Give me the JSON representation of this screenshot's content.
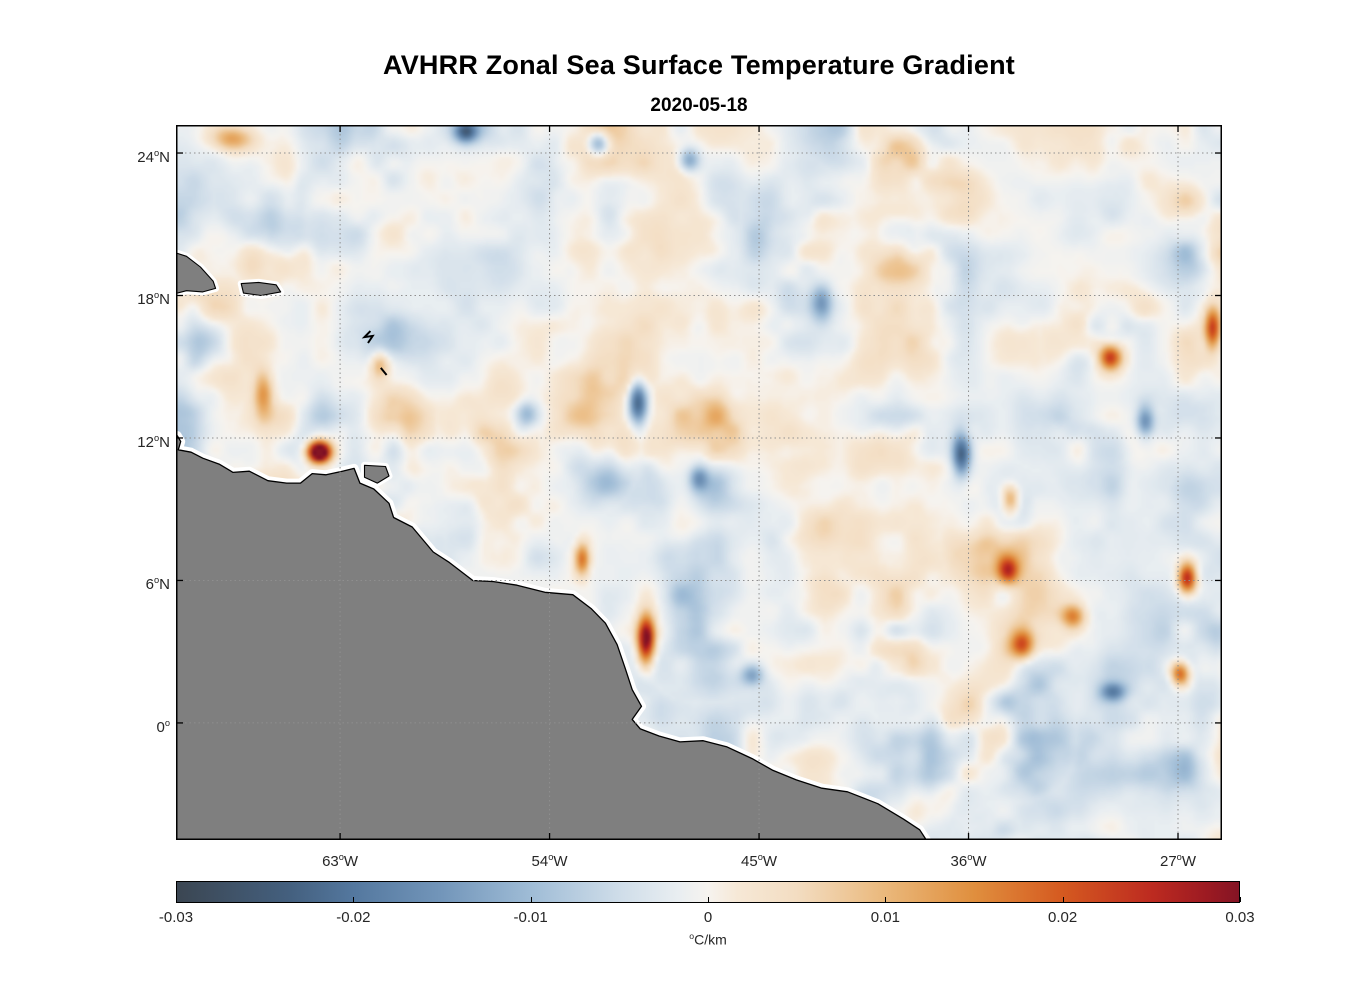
{
  "title": "AVHRR Zonal Sea Surface Temperature Gradient",
  "subtitle": "2020-05-18",
  "chart_data": {
    "type": "heatmap",
    "title": "AVHRR Zonal Sea Surface Temperature Gradient",
    "date": "2020-05-18",
    "x_axis": {
      "range": [
        -70.05,
        -25.11
      ],
      "ticks": [
        {
          "label": "63°W",
          "value": "63",
          "deg": "o",
          "suffix": "W",
          "lon": -63
        },
        {
          "label": "54°W",
          "value": "54",
          "deg": "o",
          "suffix": "W",
          "lon": -54
        },
        {
          "label": "45°W",
          "value": "45",
          "deg": "o",
          "suffix": "W",
          "lon": -45
        },
        {
          "label": "36°W",
          "value": "36",
          "deg": "o",
          "suffix": "W",
          "lon": -36
        },
        {
          "label": "27°W",
          "value": "27",
          "deg": "o",
          "suffix": "W",
          "lon": -27
        }
      ]
    },
    "y_axis": {
      "range": [
        -4.93,
        25.18
      ],
      "ticks": [
        {
          "label": "24°N",
          "value": "24",
          "deg": "o",
          "suffix": "N",
          "lat": 24
        },
        {
          "label": "18°N",
          "value": "18",
          "deg": "o",
          "suffix": "N",
          "lat": 18
        },
        {
          "label": "12°N",
          "value": "12",
          "deg": "o",
          "suffix": "N",
          "lat": 12
        },
        {
          "label": "6°N",
          "value": "6",
          "deg": "o",
          "suffix": "N",
          "lat": 6
        },
        {
          "label": "0°",
          "value": "0",
          "deg": "o",
          "suffix": "",
          "lat": 0
        }
      ]
    },
    "colorbar": {
      "range": [
        -0.03,
        0.03
      ],
      "unit": "°C/km",
      "unit_deg": "o",
      "unit_text": "C/km",
      "ticks": [
        "-0.03",
        "-0.02",
        "-0.01",
        "0",
        "0.01",
        "0.02",
        "0.03"
      ],
      "tick_values": [
        -0.03,
        -0.02,
        -0.01,
        0,
        0.01,
        0.02,
        0.03
      ],
      "colormap": [
        {
          "t": 0.0,
          "c": "#3b4652"
        },
        {
          "t": 0.107,
          "c": "#44607f"
        },
        {
          "t": 0.167,
          "c": "#54789f"
        },
        {
          "t": 0.25,
          "c": "#7396ba"
        },
        {
          "t": 0.333,
          "c": "#9fbcd6"
        },
        {
          "t": 0.417,
          "c": "#cfdde9"
        },
        {
          "t": 0.472,
          "c": "#e9eef1"
        },
        {
          "t": 0.5,
          "c": "#f6f3ef"
        },
        {
          "t": 0.528,
          "c": "#f6e8d6"
        },
        {
          "t": 0.583,
          "c": "#f3ddc2"
        },
        {
          "t": 0.667,
          "c": "#eab87b"
        },
        {
          "t": 0.75,
          "c": "#e08f3e"
        },
        {
          "t": 0.833,
          "c": "#d55a20"
        },
        {
          "t": 0.917,
          "c": "#bd2b20"
        },
        {
          "t": 0.97,
          "c": "#9c1a22"
        },
        {
          "t": 1.0,
          "c": "#841424"
        }
      ]
    },
    "land_color": "#7f7f7f",
    "coast_outline_color": "#000000",
    "coast_gap_color": "#ffffff",
    "grid_color": "#8f8f8f",
    "coastline": [
      [
        -70.4,
        12.15
      ],
      [
        -70.0,
        12.1
      ],
      [
        -69.85,
        11.85
      ],
      [
        -69.95,
        11.5
      ],
      [
        -69.4,
        11.4
      ],
      [
        -68.9,
        11.15
      ],
      [
        -68.2,
        10.9
      ],
      [
        -67.6,
        10.55
      ],
      [
        -66.9,
        10.6
      ],
      [
        -66.1,
        10.2
      ],
      [
        -65.3,
        10.1
      ],
      [
        -64.7,
        10.1
      ],
      [
        -64.2,
        10.5
      ],
      [
        -63.6,
        10.45
      ],
      [
        -62.9,
        10.6
      ],
      [
        -62.4,
        10.72
      ],
      [
        -62.15,
        10.1
      ],
      [
        -61.55,
        9.85
      ],
      [
        -60.9,
        9.25
      ],
      [
        -60.7,
        8.65
      ],
      [
        -59.9,
        8.25
      ],
      [
        -59.0,
        7.2
      ],
      [
        -58.3,
        6.75
      ],
      [
        -57.3,
        6.0
      ],
      [
        -56.4,
        5.95
      ],
      [
        -55.4,
        5.8
      ],
      [
        -54.2,
        5.5
      ],
      [
        -53.0,
        5.4
      ],
      [
        -52.2,
        4.8
      ],
      [
        -51.6,
        4.2
      ],
      [
        -51.1,
        3.3
      ],
      [
        -50.75,
        2.3
      ],
      [
        -50.45,
        1.4
      ],
      [
        -50.05,
        0.7
      ],
      [
        -50.45,
        0.15
      ],
      [
        -50.1,
        -0.25
      ],
      [
        -49.3,
        -0.55
      ],
      [
        -48.4,
        -0.8
      ],
      [
        -47.4,
        -0.75
      ],
      [
        -46.4,
        -1.0
      ],
      [
        -45.3,
        -1.5
      ],
      [
        -44.4,
        -2.0
      ],
      [
        -43.4,
        -2.4
      ],
      [
        -42.3,
        -2.75
      ],
      [
        -41.2,
        -2.9
      ],
      [
        -39.9,
        -3.4
      ],
      [
        -38.8,
        -4.05
      ],
      [
        -38.1,
        -4.5
      ],
      [
        -37.5,
        -5.4
      ]
    ],
    "coastline_close": [
      [
        -37.2,
        -6.5
      ],
      [
        -71.0,
        -6.5
      ]
    ],
    "islands": [
      [
        [
          -70.4,
          19.9
        ],
        [
          -69.6,
          19.65
        ],
        [
          -69.0,
          19.2
        ],
        [
          -68.45,
          18.6
        ],
        [
          -68.35,
          18.3
        ],
        [
          -68.9,
          18.15
        ],
        [
          -69.6,
          18.2
        ],
        [
          -70.4,
          18.0
        ]
      ],
      [
        [
          -67.25,
          18.5
        ],
        [
          -66.5,
          18.55
        ],
        [
          -65.75,
          18.45
        ],
        [
          -65.55,
          18.15
        ],
        [
          -66.4,
          18.0
        ],
        [
          -67.15,
          18.1
        ]
      ],
      [
        [
          -61.95,
          10.85
        ],
        [
          -61.05,
          10.8
        ],
        [
          -60.9,
          10.4
        ],
        [
          -61.4,
          10.1
        ],
        [
          -61.95,
          10.35
        ]
      ]
    ],
    "minor_islands": [
      [
        [
          -61.7,
          16.5
        ],
        [
          -61.95,
          16.25
        ],
        [
          -61.6,
          16.3
        ],
        [
          -61.8,
          16.0
        ]
      ],
      [
        [
          -61.25,
          14.95
        ],
        [
          -61.0,
          14.65
        ]
      ]
    ],
    "features": [
      {
        "lon": -63.9,
        "lat": 11.4,
        "amp": 0.042,
        "sx": 0.5,
        "sy": 0.45
      },
      {
        "lon": -66.3,
        "lat": 13.9,
        "amp": 0.013,
        "sx": 0.4,
        "sy": 1.0
      },
      {
        "lon": -67.6,
        "lat": 24.6,
        "amp": 0.012,
        "sx": 0.9,
        "sy": 0.5
      },
      {
        "lon": -57.6,
        "lat": 24.9,
        "amp": -0.02,
        "sx": 0.5,
        "sy": 0.45
      },
      {
        "lon": -51.9,
        "lat": 24.4,
        "amp": -0.016,
        "sx": 0.45,
        "sy": 0.5
      },
      {
        "lon": -50.2,
        "lat": 13.5,
        "amp": -0.024,
        "sx": 0.4,
        "sy": 0.9
      },
      {
        "lon": -49.85,
        "lat": 3.5,
        "amp": 0.034,
        "sx": 0.38,
        "sy": 1.0
      },
      {
        "lon": -52.6,
        "lat": 6.9,
        "amp": 0.018,
        "sx": 0.32,
        "sy": 0.7
      },
      {
        "lon": -36.3,
        "lat": 11.3,
        "amp": -0.022,
        "sx": 0.4,
        "sy": 0.9
      },
      {
        "lon": -29.9,
        "lat": 15.4,
        "amp": 0.026,
        "sx": 0.5,
        "sy": 0.55
      },
      {
        "lon": -25.5,
        "lat": 16.6,
        "amp": 0.024,
        "sx": 0.35,
        "sy": 0.9
      },
      {
        "lon": -26.6,
        "lat": 6.1,
        "amp": 0.028,
        "sx": 0.4,
        "sy": 0.65
      },
      {
        "lon": -34.3,
        "lat": 6.4,
        "amp": 0.02,
        "sx": 0.45,
        "sy": 0.55
      },
      {
        "lon": -33.7,
        "lat": 3.3,
        "amp": 0.018,
        "sx": 0.5,
        "sy": 0.6
      },
      {
        "lon": -26.9,
        "lat": 2.1,
        "amp": 0.022,
        "sx": 0.4,
        "sy": 0.5
      },
      {
        "lon": -29.8,
        "lat": 1.3,
        "amp": -0.015,
        "sx": 0.55,
        "sy": 0.4
      },
      {
        "lon": -42.3,
        "lat": 17.7,
        "amp": -0.013,
        "sx": 0.45,
        "sy": 0.8
      },
      {
        "lon": -28.4,
        "lat": 12.7,
        "amp": -0.016,
        "sx": 0.4,
        "sy": 0.7
      },
      {
        "lon": -48.0,
        "lat": 23.7,
        "amp": -0.014,
        "sx": 0.45,
        "sy": 0.5
      },
      {
        "lon": -47.6,
        "lat": 10.3,
        "amp": -0.012,
        "sx": 0.4,
        "sy": 0.55
      },
      {
        "lon": -34.2,
        "lat": 9.4,
        "amp": 0.015,
        "sx": 0.38,
        "sy": 0.6
      },
      {
        "lon": -31.5,
        "lat": 4.5,
        "amp": 0.016,
        "sx": 0.5,
        "sy": 0.5
      },
      {
        "lon": -61.3,
        "lat": 15.1,
        "amp": 0.012,
        "sx": 0.4,
        "sy": 0.6
      },
      {
        "lon": -55.0,
        "lat": 13.0,
        "amp": -0.011,
        "sx": 0.5,
        "sy": 0.6
      },
      {
        "lon": -45.3,
        "lat": 2.0,
        "amp": -0.012,
        "sx": 0.5,
        "sy": 0.45
      }
    ]
  }
}
